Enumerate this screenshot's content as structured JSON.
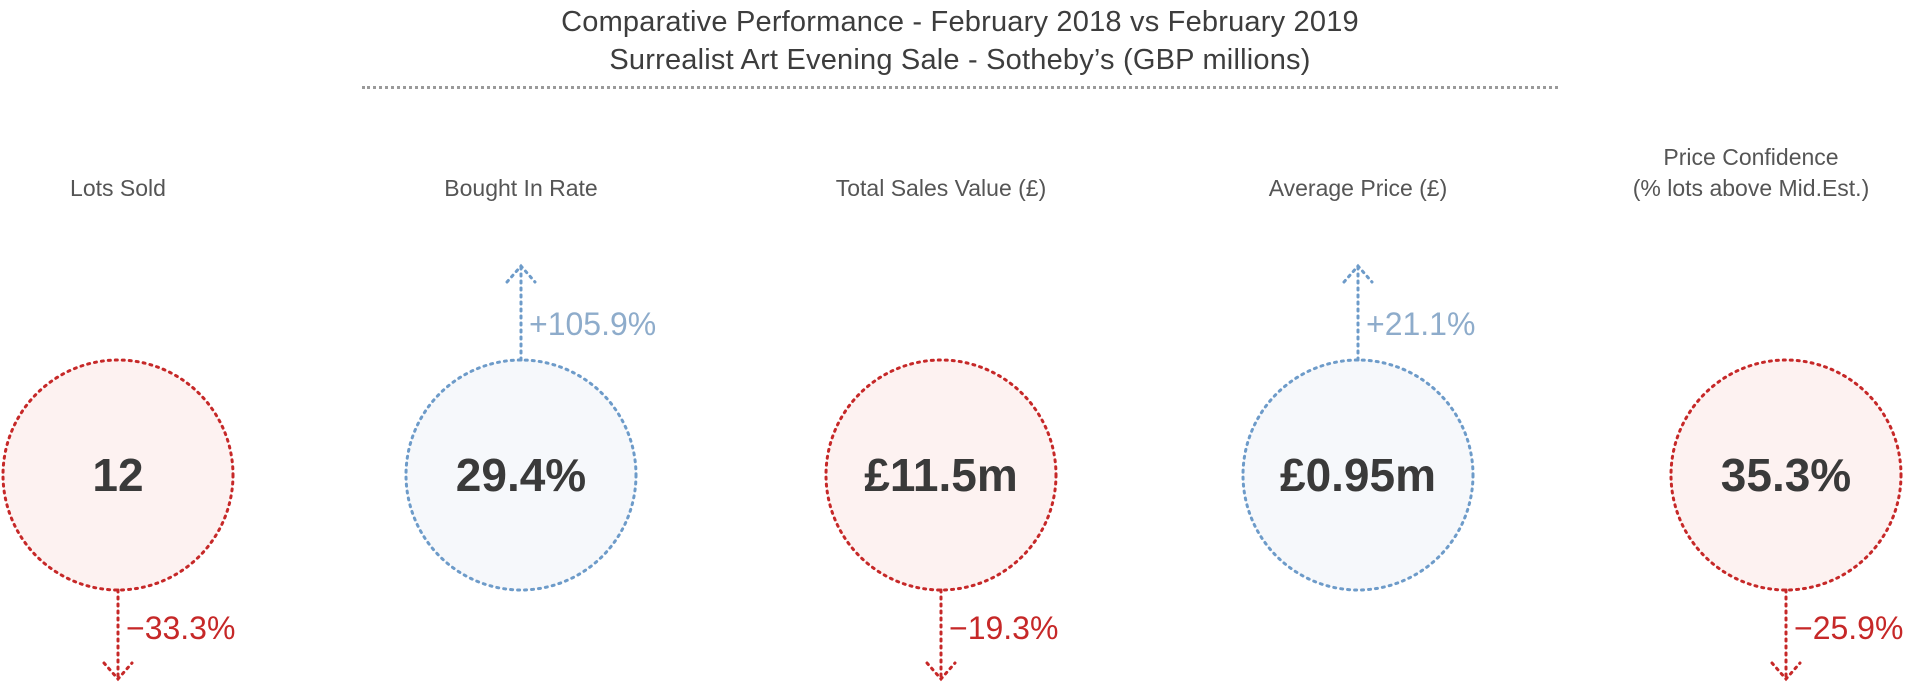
{
  "header": {
    "title_line1": "Comparative Performance - February 2018 vs February 2019",
    "title_line2": "Surrealist Art Evening Sale - Sotheby’s (GBP millions)"
  },
  "colors": {
    "down_stroke": "#c62828",
    "down_fill": "#fdf2f1",
    "up_stroke": "#6d9bc9",
    "up_fill": "#f6f8fb",
    "up_text": "#8eaccb",
    "down_text": "#c62828"
  },
  "metrics": [
    {
      "label_lines": [
        "Lots Sold"
      ],
      "value": "12",
      "change": "−33.3%",
      "direction": "down"
    },
    {
      "label_lines": [
        "Bought In Rate"
      ],
      "value": "29.4%",
      "change": "+105.9%",
      "direction": "up"
    },
    {
      "label_lines": [
        "Total Sales Value (£)"
      ],
      "value": "£11.5m",
      "change": "−19.3%",
      "direction": "down"
    },
    {
      "label_lines": [
        "Average Price (£)"
      ],
      "value": "£0.95m",
      "change": "+21.1%",
      "direction": "up"
    },
    {
      "label_lines": [
        "Price Confidence",
        "(% lots above Mid.Est.)"
      ],
      "value": "35.3%",
      "change": "−25.9%",
      "direction": "down"
    }
  ]
}
